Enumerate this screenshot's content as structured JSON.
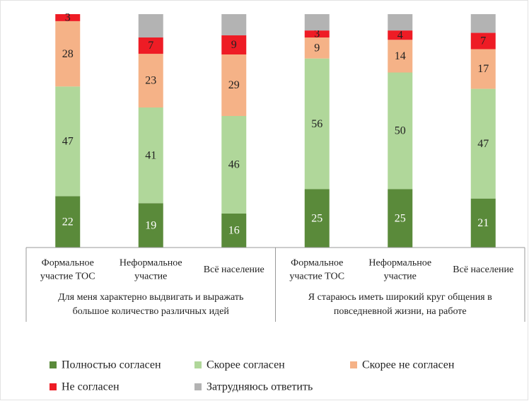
{
  "chart_data": {
    "type": "stacked_bar_percent",
    "groups": [
      {
        "label": "Для меня характерно выдвигать и выражать\nбольшое количество различных идей"
      },
      {
        "label": "Я стараюсь иметь широкий круг общения в\nповседневной жизни,  на работе"
      }
    ],
    "categories": [
      "Формальное\nучастие ТОС",
      "Неформальное\nучастие",
      "Всё население",
      "Формальное\nучастие ТОС",
      "Неформальное\nучастие",
      "Всё население"
    ],
    "group_size": 3,
    "series": [
      {
        "name": "Полностью согласен",
        "color": "#5a8a3a",
        "label_color": "#ffffff",
        "values": [
          22,
          19,
          16,
          25,
          25,
          21
        ]
      },
      {
        "name": "Скорее согласен",
        "color": "#b0d79a",
        "label_color": "#222222",
        "values": [
          47,
          41,
          46,
          56,
          50,
          47
        ]
      },
      {
        "name": "Скорее не согласен",
        "color": "#f5b287",
        "label_color": "#222222",
        "values": [
          28,
          23,
          29,
          9,
          14,
          17
        ]
      },
      {
        "name": "Не согласен",
        "color": "#ee1c25",
        "label_color": "#222222",
        "values": [
          3,
          7,
          9,
          3,
          4,
          7
        ]
      },
      {
        "name": "Затрудняюсь ответить",
        "color": "#b3b3b3",
        "data_labels": false,
        "values": [
          0,
          10,
          10,
          7,
          7,
          8
        ]
      }
    ]
  }
}
